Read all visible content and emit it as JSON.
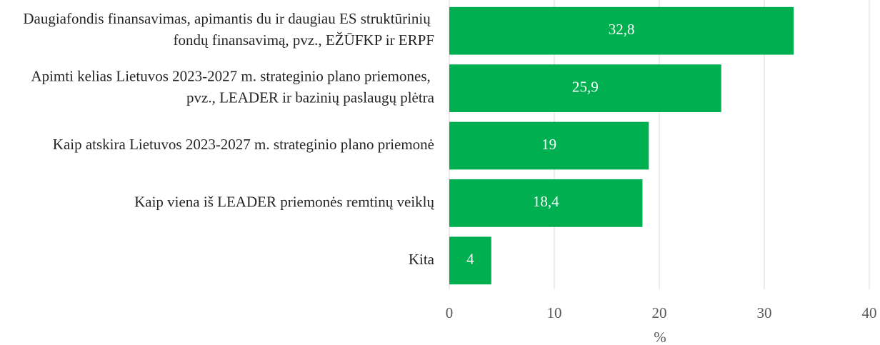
{
  "chart_data": {
    "type": "bar",
    "orientation": "horizontal",
    "categories": [
      "Daugiafondis finansavimas, apimantis du ir daugiau ES struktūrinių fondų finansavimą, pvz., EŽŪFKP ir ERPF",
      "Apimti kelias Lietuvos 2023-2027 m. strateginio plano priemones, pvz., LEADER ir bazinių paslaugų plėtra",
      "Kaip atskira Lietuvos 2023-2027 m. strateginio plano priemonė",
      "Kaip viena iš LEADER priemonės remtinų veiklų",
      "Kita"
    ],
    "values": [
      32.8,
      25.9,
      19,
      18.4,
      4
    ],
    "value_labels": [
      "32,8",
      "25,9",
      "19",
      "18,4",
      "4"
    ],
    "color": "#00b050",
    "xlabel": "%",
    "xlim": [
      0,
      40
    ],
    "xticks": [
      0,
      10,
      20,
      30,
      40
    ],
    "grid": true
  }
}
